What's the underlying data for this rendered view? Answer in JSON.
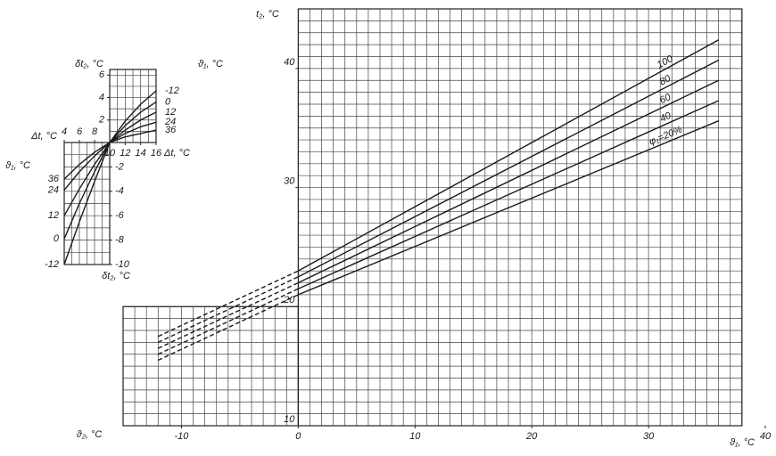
{
  "chart_data": [
    {
      "type": "line",
      "ylabel": "t₂, °C",
      "xlabel": "ϑ₁, °C",
      "xlabel_left": "ϑ₂, °C",
      "x": [
        -12,
        0,
        36
      ],
      "series": [
        {
          "name": "100",
          "values": [
            17.5,
            23.0,
            42.4
          ]
        },
        {
          "name": "80",
          "values": [
            17.0,
            22.5,
            40.7
          ]
        },
        {
          "name": "60",
          "values": [
            16.5,
            22.0,
            39.0
          ]
        },
        {
          "name": "40",
          "values": [
            16.0,
            21.5,
            37.3
          ]
        },
        {
          "name": "φ₁=20%",
          "values": [
            15.5,
            21.0,
            35.6
          ]
        }
      ],
      "color": "#1a1a1a",
      "dashed_below_x": 0,
      "xlim": [
        -15,
        40
      ],
      "ylim": [
        10,
        45
      ],
      "xticks": [
        -10,
        0,
        10,
        20,
        30,
        40
      ],
      "yticks": [
        10,
        20,
        30,
        40
      ],
      "grid_regions": [
        [
          0,
          38,
          10,
          45
        ],
        [
          -15,
          0,
          10,
          20
        ]
      ],
      "grid_step": 1
    },
    {
      "type": "line",
      "ylabel": "δt₂, °C",
      "xlabel": "Δt, °C",
      "series_label": "ϑ₁, °C",
      "x": [
        10,
        12,
        14,
        16
      ],
      "series": [
        {
          "name": "-12",
          "values": [
            0,
            1.9,
            3.4,
            4.6
          ]
        },
        {
          "name": "0",
          "values": [
            0,
            1.5,
            2.7,
            3.6
          ]
        },
        {
          "name": "12",
          "values": [
            0,
            1.1,
            2.0,
            2.7
          ]
        },
        {
          "name": "24",
          "values": [
            0,
            0.8,
            1.4,
            1.8
          ]
        },
        {
          "name": "36",
          "values": [
            0,
            0.5,
            0.8,
            1.1
          ]
        }
      ],
      "color": "#1a1a1a",
      "xlim": [
        10,
        16
      ],
      "ylim": [
        0,
        6.5
      ],
      "xticks": [
        10,
        12,
        14,
        16
      ],
      "yticks": [
        2,
        4,
        6
      ],
      "grid_step": 1
    },
    {
      "type": "line",
      "ylabel": "δt₂, °C",
      "xlabel": "Δt, °C",
      "series_label": "ϑ₁, °C",
      "x": [
        4,
        6,
        8,
        10
      ],
      "series": [
        {
          "name": "36",
          "values": [
            -3.0,
            -1.8,
            -0.8,
            0
          ]
        },
        {
          "name": "24",
          "values": [
            -3.9,
            -2.4,
            -1.1,
            0
          ]
        },
        {
          "name": "12",
          "values": [
            -6.0,
            -3.8,
            -1.8,
            0
          ]
        },
        {
          "name": "0",
          "values": [
            -7.9,
            -5.0,
            -2.4,
            0
          ]
        },
        {
          "name": "-12",
          "values": [
            -10,
            -6.5,
            -3.2,
            0
          ]
        }
      ],
      "color": "#1a1a1a",
      "xlim": [
        4,
        10
      ],
      "ylim": [
        -10,
        0
      ],
      "xticks": [
        4,
        6,
        8
      ],
      "yticks": [
        -2,
        -4,
        -6,
        -8,
        -10
      ],
      "grid_step": 1
    }
  ]
}
